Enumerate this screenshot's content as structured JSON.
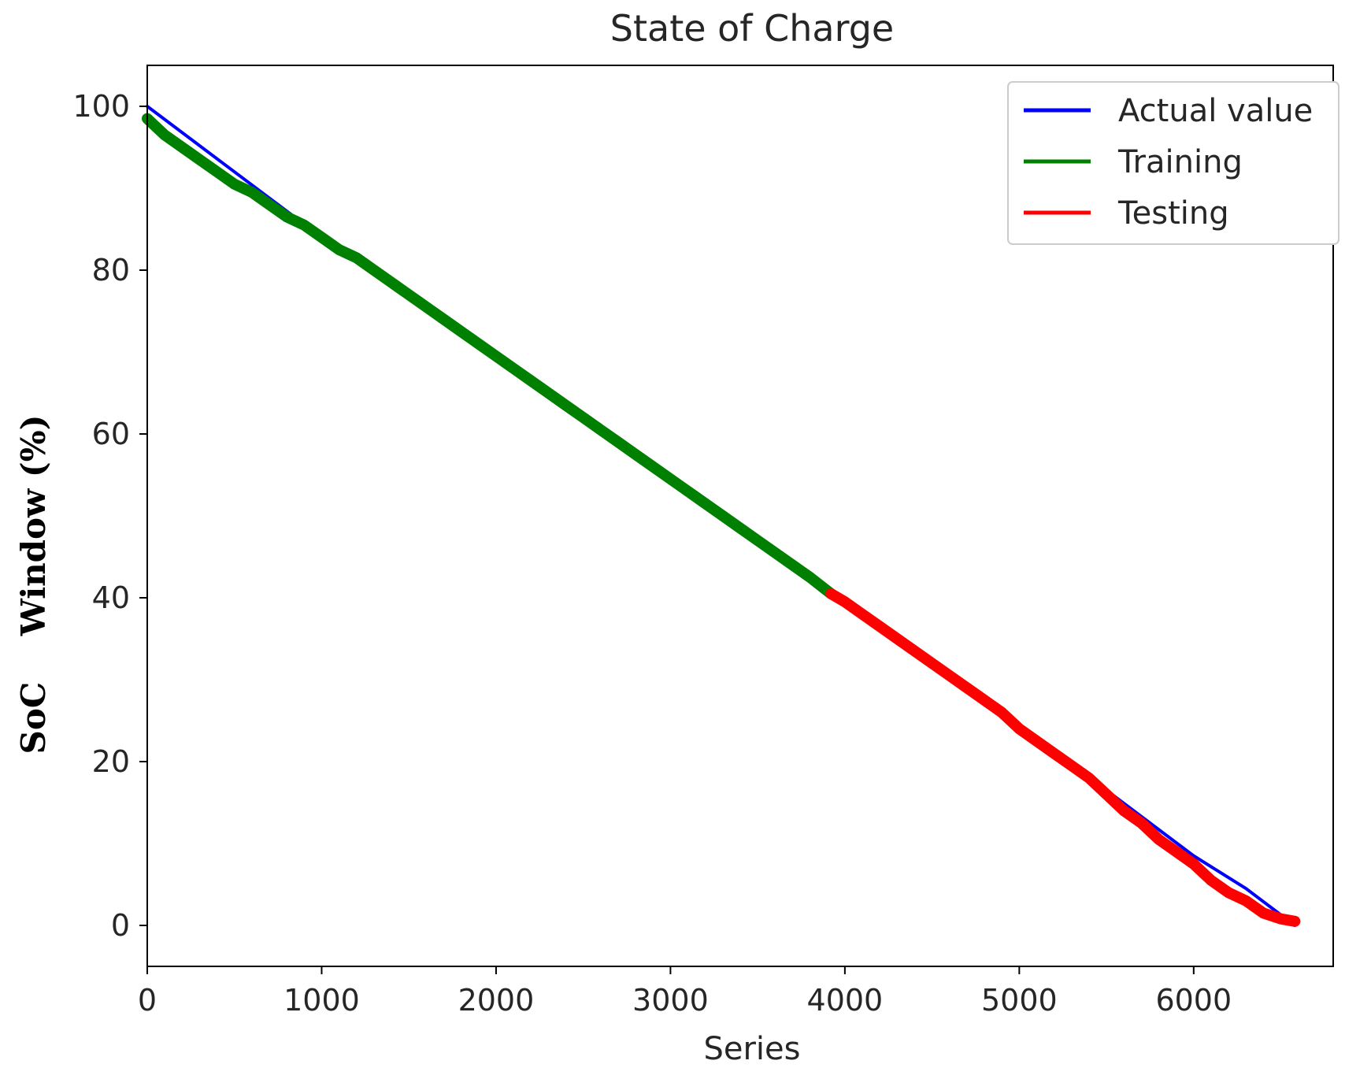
{
  "chart_data": {
    "type": "line",
    "title": "State of Charge",
    "xlabel": "Series",
    "ylabel": "SoC    Window (%)",
    "xlim": [
      0,
      6800
    ],
    "ylim": [
      -5,
      105
    ],
    "xticks": [
      0,
      1000,
      2000,
      3000,
      4000,
      5000,
      6000
    ],
    "yticks": [
      0,
      20,
      40,
      60,
      80,
      100
    ],
    "grid": false,
    "legend_position": "top-right",
    "series": [
      {
        "name": "Actual value",
        "color": "#0000ff",
        "x": [
          0,
          500,
          1000,
          1500,
          2000,
          2500,
          3000,
          3500,
          3920,
          4500,
          5000,
          5500,
          6000,
          6300,
          6580
        ],
        "y": [
          100,
          92,
          84,
          77,
          69.5,
          62,
          54.5,
          47,
          40.5,
          31.5,
          24,
          16.5,
          8.5,
          4.5,
          0
        ]
      },
      {
        "name": "Training",
        "color": "#008000",
        "x": [
          0,
          100,
          200,
          300,
          400,
          500,
          600,
          700,
          800,
          900,
          1000,
          1100,
          1200,
          1300,
          1400,
          1500,
          1600,
          1700,
          1800,
          1900,
          2000,
          2100,
          2200,
          2300,
          2400,
          2500,
          2600,
          2700,
          2800,
          2900,
          3000,
          3100,
          3200,
          3300,
          3400,
          3500,
          3600,
          3700,
          3800,
          3920
        ],
        "y": [
          98.5,
          96.5,
          95,
          93.5,
          92,
          90.5,
          89.5,
          88,
          86.5,
          85.5,
          84,
          82.5,
          81.5,
          80,
          78.5,
          77,
          75.5,
          74,
          72.5,
          71,
          69.5,
          68,
          66.5,
          65,
          63.5,
          62,
          60.5,
          59,
          57.5,
          56,
          54.5,
          53,
          51.5,
          50,
          48.5,
          47,
          45.5,
          44,
          42.5,
          40.5
        ]
      },
      {
        "name": "Testing",
        "color": "#ff0000",
        "x": [
          3920,
          4000,
          4100,
          4200,
          4300,
          4400,
          4500,
          4600,
          4700,
          4800,
          4900,
          5000,
          5100,
          5200,
          5300,
          5400,
          5500,
          5600,
          5700,
          5800,
          5900,
          6000,
          6100,
          6200,
          6300,
          6400,
          6500,
          6580
        ],
        "y": [
          40.5,
          39.5,
          38,
          36.5,
          35,
          33.5,
          32,
          30.5,
          29,
          27.5,
          26,
          24,
          22.5,
          21,
          19.5,
          18,
          16,
          14,
          12.5,
          10.5,
          9,
          7.5,
          5.5,
          4,
          3,
          1.5,
          0.8,
          0.5
        ]
      }
    ]
  }
}
